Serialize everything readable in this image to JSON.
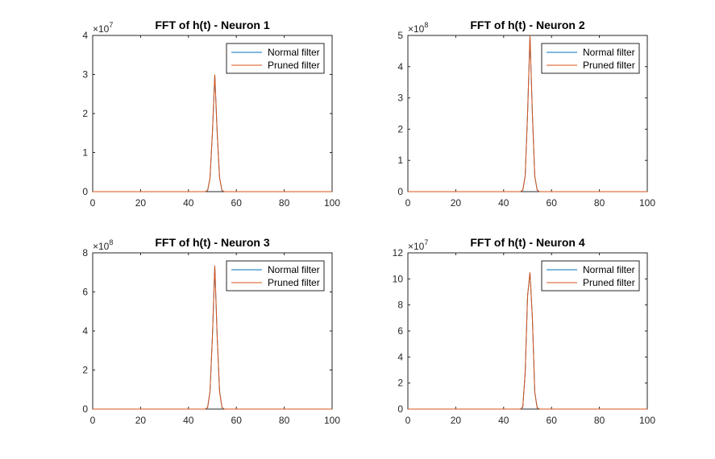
{
  "chart_data": [
    {
      "type": "line",
      "title": "FFT of h(t) - Neuron 1",
      "xlabel": "",
      "ylabel": "",
      "xlim": [
        0,
        100
      ],
      "ylim": [
        0,
        4
      ],
      "y_exponent_label": "×10^7",
      "y_exp_base": "×10",
      "y_exp_power": "7",
      "xticks": [
        0,
        20,
        40,
        60,
        80,
        100
      ],
      "yticks": [
        0,
        1,
        2,
        3,
        4
      ],
      "grid": false,
      "legend_position": "top-right",
      "series": [
        {
          "name": "Normal filter",
          "color": "#0072BD",
          "x": [
            0,
            47,
            48,
            49,
            50,
            51,
            52,
            53,
            54,
            55,
            100
          ],
          "y": [
            0,
            0,
            0.03,
            0.35,
            1.5,
            3.0,
            1.5,
            0.35,
            0.03,
            0,
            0
          ]
        },
        {
          "name": "Pruned filter",
          "color": "#D95319",
          "x": [
            0,
            47,
            48,
            49,
            50,
            51,
            52,
            53,
            54,
            55,
            100
          ],
          "y": [
            0,
            0,
            0.03,
            0.35,
            1.5,
            3.0,
            1.5,
            0.35,
            0.03,
            0,
            0
          ]
        }
      ]
    },
    {
      "type": "line",
      "title": "FFT of h(t) - Neuron 2",
      "xlabel": "",
      "ylabel": "",
      "xlim": [
        0,
        100
      ],
      "ylim": [
        0,
        5
      ],
      "y_exponent_label": "×10^8",
      "y_exp_base": "×10",
      "y_exp_power": "8",
      "xticks": [
        0,
        20,
        40,
        60,
        80,
        100
      ],
      "yticks": [
        0,
        1,
        2,
        3,
        4,
        5
      ],
      "grid": false,
      "legend_position": "top-right",
      "series": [
        {
          "name": "Normal filter",
          "color": "#0072BD",
          "x": [
            0,
            47,
            48,
            49,
            50,
            51,
            52,
            53,
            54,
            55,
            100
          ],
          "y": [
            0,
            0,
            0.05,
            0.5,
            2.5,
            5.0,
            2.5,
            0.5,
            0.05,
            0,
            0
          ]
        },
        {
          "name": "Pruned filter",
          "color": "#D95319",
          "x": [
            0,
            47,
            48,
            49,
            50,
            51,
            52,
            53,
            54,
            55,
            100
          ],
          "y": [
            0,
            0,
            0.05,
            0.5,
            2.5,
            5.0,
            2.5,
            0.5,
            0.05,
            0,
            0
          ]
        }
      ]
    },
    {
      "type": "line",
      "title": "FFT of h(t) - Neuron 3",
      "xlabel": "",
      "ylabel": "",
      "xlim": [
        0,
        100
      ],
      "ylim": [
        0,
        8
      ],
      "y_exponent_label": "×10^8",
      "y_exp_base": "×10",
      "y_exp_power": "8",
      "xticks": [
        0,
        20,
        40,
        60,
        80,
        100
      ],
      "yticks": [
        0,
        2,
        4,
        6,
        8
      ],
      "grid": false,
      "legend_position": "top-right",
      "series": [
        {
          "name": "Normal filter",
          "color": "#0072BD",
          "x": [
            0,
            47,
            48,
            49,
            50,
            51,
            52,
            53,
            54,
            55,
            100
          ],
          "y": [
            0,
            0,
            0.08,
            0.9,
            3.7,
            7.35,
            3.7,
            0.9,
            0.08,
            0,
            0
          ]
        },
        {
          "name": "Pruned filter",
          "color": "#D95319",
          "x": [
            0,
            47,
            48,
            49,
            50,
            51,
            52,
            53,
            54,
            55,
            100
          ],
          "y": [
            0,
            0,
            0.08,
            0.9,
            3.7,
            7.35,
            3.7,
            0.9,
            0.08,
            0,
            0
          ]
        }
      ]
    },
    {
      "type": "line",
      "title": "FFT of h(t) - Neuron 4",
      "xlabel": "",
      "ylabel": "",
      "xlim": [
        0,
        100
      ],
      "ylim": [
        0,
        12
      ],
      "y_exponent_label": "×10^7",
      "y_exp_base": "×10",
      "y_exp_power": "7",
      "xticks": [
        0,
        20,
        40,
        60,
        80,
        100
      ],
      "yticks": [
        0,
        2,
        4,
        6,
        8,
        10,
        12
      ],
      "grid": false,
      "legend_position": "top-right",
      "series": [
        {
          "name": "Normal filter",
          "color": "#0072BD",
          "x": [
            0,
            47,
            48,
            49,
            50,
            51,
            52,
            53,
            54,
            55,
            100
          ],
          "y": [
            0,
            0,
            0.15,
            2.8,
            8.7,
            10.5,
            7.0,
            1.3,
            0.1,
            0,
            0
          ]
        },
        {
          "name": "Pruned filter",
          "color": "#D95319",
          "x": [
            0,
            47,
            48,
            49,
            50,
            51,
            52,
            53,
            54,
            55,
            100
          ],
          "y": [
            0,
            0,
            0.15,
            2.8,
            8.7,
            10.5,
            7.0,
            1.3,
            0.1,
            0,
            0
          ]
        }
      ]
    }
  ]
}
